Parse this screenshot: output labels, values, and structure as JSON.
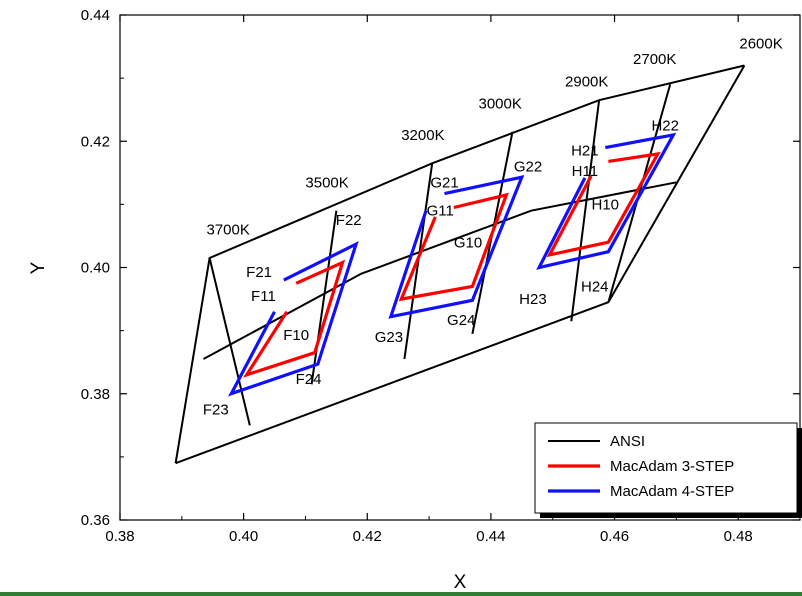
{
  "chart_data": {
    "type": "line",
    "title": "",
    "xlabel": "X",
    "ylabel": "Y",
    "xlim": [
      0.38,
      0.49
    ],
    "ylim": [
      0.36,
      0.44
    ],
    "x_ticks": [
      "0.38",
      "0.40",
      "0.42",
      "0.44",
      "0.46",
      "0.48"
    ],
    "y_ticks": [
      "0.36",
      "0.38",
      "0.40",
      "0.42",
      "0.44"
    ],
    "grid": false,
    "legend_position": "bottom-right",
    "legend": [
      {
        "label": "ANSI",
        "color": "#000000"
      },
      {
        "label": "MacAdam 3-STEP",
        "color": "#ff0000"
      },
      {
        "label": "MacAdam 4-STEP",
        "color": "#1010ff"
      }
    ],
    "cct_labels": [
      {
        "text": "3700K",
        "x": 0.3975,
        "y": 0.406
      },
      {
        "text": "3500K",
        "x": 0.4135,
        "y": 0.4135
      },
      {
        "text": "3200K",
        "x": 0.429,
        "y": 0.421
      },
      {
        "text": "3000K",
        "x": 0.4415,
        "y": 0.426
      },
      {
        "text": "2900K",
        "x": 0.4555,
        "y": 0.4295
      },
      {
        "text": "2700K",
        "x": 0.4665,
        "y": 0.433
      },
      {
        "text": "2600K",
        "x": 0.4837,
        "y": 0.4355
      }
    ],
    "bin_labels": [
      {
        "text": "F21",
        "x": 0.4025,
        "y": 0.3993
      },
      {
        "text": "F11",
        "x": 0.4032,
        "y": 0.3955
      },
      {
        "text": "F10",
        "x": 0.4085,
        "y": 0.3893
      },
      {
        "text": "F24",
        "x": 0.4105,
        "y": 0.3823
      },
      {
        "text": "F23",
        "x": 0.3955,
        "y": 0.3775
      },
      {
        "text": "F22",
        "x": 0.417,
        "y": 0.4075
      },
      {
        "text": "G21",
        "x": 0.4325,
        "y": 0.4135
      },
      {
        "text": "G11",
        "x": 0.4318,
        "y": 0.409
      },
      {
        "text": "G10",
        "x": 0.4363,
        "y": 0.404
      },
      {
        "text": "G22",
        "x": 0.446,
        "y": 0.416
      },
      {
        "text": "G23",
        "x": 0.4235,
        "y": 0.389
      },
      {
        "text": "G24",
        "x": 0.4352,
        "y": 0.3917
      },
      {
        "text": "H21",
        "x": 0.4552,
        "y": 0.4185
      },
      {
        "text": "H11",
        "x": 0.4552,
        "y": 0.4153
      },
      {
        "text": "H10",
        "x": 0.4585,
        "y": 0.41
      },
      {
        "text": "H22",
        "x": 0.4682,
        "y": 0.4225
      },
      {
        "text": "H23",
        "x": 0.4468,
        "y": 0.395
      },
      {
        "text": "H24",
        "x": 0.4568,
        "y": 0.397
      }
    ],
    "series": [
      {
        "name": "ANSI",
        "color": "#000000",
        "segments": [
          [
            [
              0.389,
              0.369
            ],
            [
              0.459,
              0.3945
            ],
            [
              0.481,
              0.432
            ]
          ],
          [
            [
              0.389,
              0.369
            ],
            [
              0.3945,
              0.4015
            ],
            [
              0.4305,
              0.4165
            ],
            [
              0.4575,
              0.4265
            ],
            [
              0.481,
              0.432
            ]
          ],
          [
            [
              0.3935,
              0.3855
            ],
            [
              0.419,
              0.399
            ],
            [
              0.4465,
              0.409
            ],
            [
              0.47,
              0.4135
            ]
          ],
          [
            [
              0.3945,
              0.4015
            ],
            [
              0.401,
              0.375
            ]
          ],
          [
            [
              0.415,
              0.409
            ],
            [
              0.411,
              0.3815
            ]
          ],
          [
            [
              0.4305,
              0.4165
            ],
            [
              0.426,
              0.3855
            ]
          ],
          [
            [
              0.4435,
              0.4215
            ],
            [
              0.437,
              0.3895
            ]
          ],
          [
            [
              0.4575,
              0.4265
            ],
            [
              0.453,
              0.3915
            ]
          ],
          [
            [
              0.469,
              0.429
            ],
            [
              0.459,
              0.3945
            ]
          ]
        ]
      },
      {
        "name": "MacAdam 3-STEP",
        "color": "#ff0000",
        "segments": [
          [
            [
              0.407,
              0.393
            ],
            [
              0.4005,
              0.383
            ],
            [
              0.4115,
              0.3865
            ],
            [
              0.416,
              0.4008
            ],
            [
              0.4085,
              0.3975
            ]
          ],
          [
            [
              0.431,
              0.408
            ],
            [
              0.4255,
              0.395
            ],
            [
              0.437,
              0.397
            ],
            [
              0.4425,
              0.4115
            ],
            [
              0.434,
              0.4095
            ]
          ],
          [
            [
              0.4562,
              0.4145
            ],
            [
              0.4495,
              0.402
            ],
            [
              0.459,
              0.404
            ],
            [
              0.467,
              0.418
            ],
            [
              0.459,
              0.4168
            ]
          ]
        ]
      },
      {
        "name": "MacAdam 4-STEP",
        "color": "#1010ff",
        "segments": [
          [
            [
              0.405,
              0.393
            ],
            [
              0.398,
              0.38
            ],
            [
              0.412,
              0.3847
            ],
            [
              0.4182,
              0.4037
            ],
            [
              0.4065,
              0.398
            ]
          ],
          [
            [
              0.4295,
              0.409
            ],
            [
              0.4238,
              0.3922
            ],
            [
              0.437,
              0.3948
            ],
            [
              0.445,
              0.4143
            ],
            [
              0.4325,
              0.4117
            ]
          ],
          [
            [
              0.4552,
              0.4142
            ],
            [
              0.4478,
              0.4
            ],
            [
              0.459,
              0.4025
            ],
            [
              0.4695,
              0.421
            ],
            [
              0.4585,
              0.419
            ]
          ]
        ]
      }
    ]
  }
}
